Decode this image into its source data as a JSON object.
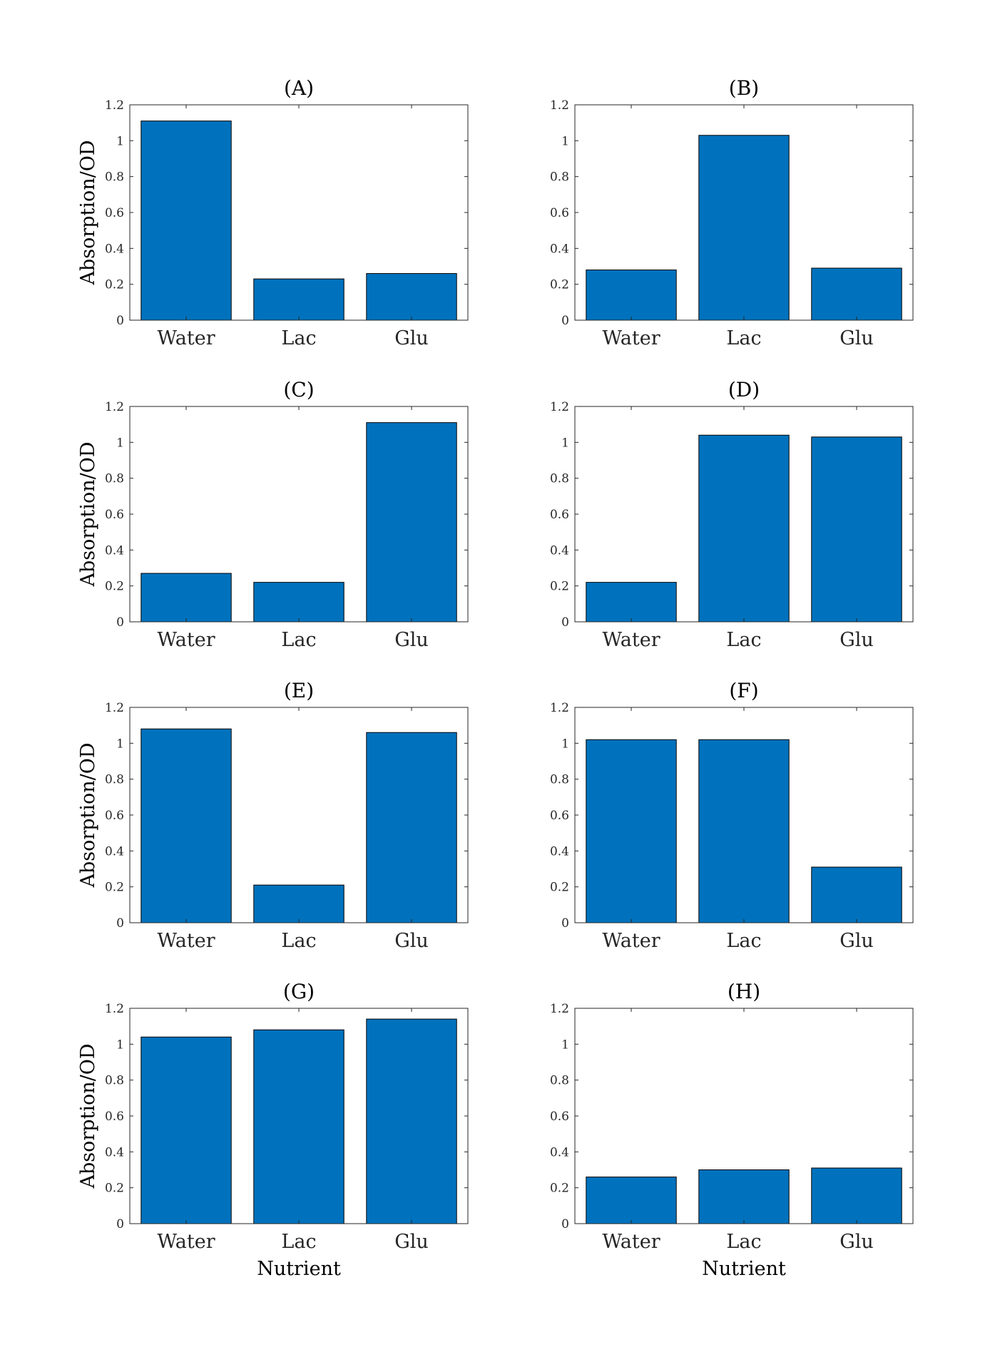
{
  "colors": {
    "bar": "#0072BD",
    "bar_edge": "#000000",
    "axis": "#262626"
  },
  "chart_data": [
    {
      "type": "bar",
      "title": "(A)",
      "categories": [
        "Water",
        "Lac",
        "Glu"
      ],
      "values": [
        1.11,
        0.23,
        0.26
      ],
      "ylim": [
        0,
        1.2
      ],
      "yticks": [
        "0",
        "0.2",
        "0.4",
        "0.6",
        "0.8",
        "1",
        "1.2"
      ],
      "ylabel": "Absorption/OD",
      "xlabel": ""
    },
    {
      "type": "bar",
      "title": "(B)",
      "categories": [
        "Water",
        "Lac",
        "Glu"
      ],
      "values": [
        0.28,
        1.03,
        0.29
      ],
      "ylim": [
        0,
        1.2
      ],
      "yticks": [
        "0",
        "0.2",
        "0.4",
        "0.6",
        "0.8",
        "1",
        "1.2"
      ],
      "ylabel": "",
      "xlabel": ""
    },
    {
      "type": "bar",
      "title": "(C)",
      "categories": [
        "Water",
        "Lac",
        "Glu"
      ],
      "values": [
        0.27,
        0.22,
        1.11
      ],
      "ylim": [
        0,
        1.2
      ],
      "yticks": [
        "0",
        "0.2",
        "0.4",
        "0.6",
        "0.8",
        "1",
        "1.2"
      ],
      "ylabel": "Absorption/OD",
      "xlabel": ""
    },
    {
      "type": "bar",
      "title": "(D)",
      "categories": [
        "Water",
        "Lac",
        "Glu"
      ],
      "values": [
        0.22,
        1.04,
        1.03
      ],
      "ylim": [
        0,
        1.2
      ],
      "yticks": [
        "0",
        "0.2",
        "0.4",
        "0.6",
        "0.8",
        "1",
        "1.2"
      ],
      "ylabel": "",
      "xlabel": ""
    },
    {
      "type": "bar",
      "title": "(E)",
      "categories": [
        "Water",
        "Lac",
        "Glu"
      ],
      "values": [
        1.08,
        0.21,
        1.06
      ],
      "ylim": [
        0,
        1.2
      ],
      "yticks": [
        "0",
        "0.2",
        "0.4",
        "0.6",
        "0.8",
        "1",
        "1.2"
      ],
      "ylabel": "Absorption/OD",
      "xlabel": ""
    },
    {
      "type": "bar",
      "title": "(F)",
      "categories": [
        "Water",
        "Lac",
        "Glu"
      ],
      "values": [
        1.02,
        1.02,
        0.31
      ],
      "ylim": [
        0,
        1.2
      ],
      "yticks": [
        "0",
        "0.2",
        "0.4",
        "0.6",
        "0.8",
        "1",
        "1.2"
      ],
      "ylabel": "",
      "xlabel": ""
    },
    {
      "type": "bar",
      "title": "(G)",
      "categories": [
        "Water",
        "Lac",
        "Glu"
      ],
      "values": [
        1.04,
        1.08,
        1.14
      ],
      "ylim": [
        0,
        1.2
      ],
      "yticks": [
        "0",
        "0.2",
        "0.4",
        "0.6",
        "0.8",
        "1",
        "1.2"
      ],
      "ylabel": "Absorption/OD",
      "xlabel": "Nutrient"
    },
    {
      "type": "bar",
      "title": "(H)",
      "categories": [
        "Water",
        "Lac",
        "Glu"
      ],
      "values": [
        0.26,
        0.3,
        0.31
      ],
      "ylim": [
        0,
        1.2
      ],
      "yticks": [
        "0",
        "0.2",
        "0.4",
        "0.6",
        "0.8",
        "1",
        "1.2"
      ],
      "ylabel": "",
      "xlabel": "Nutrient"
    }
  ]
}
